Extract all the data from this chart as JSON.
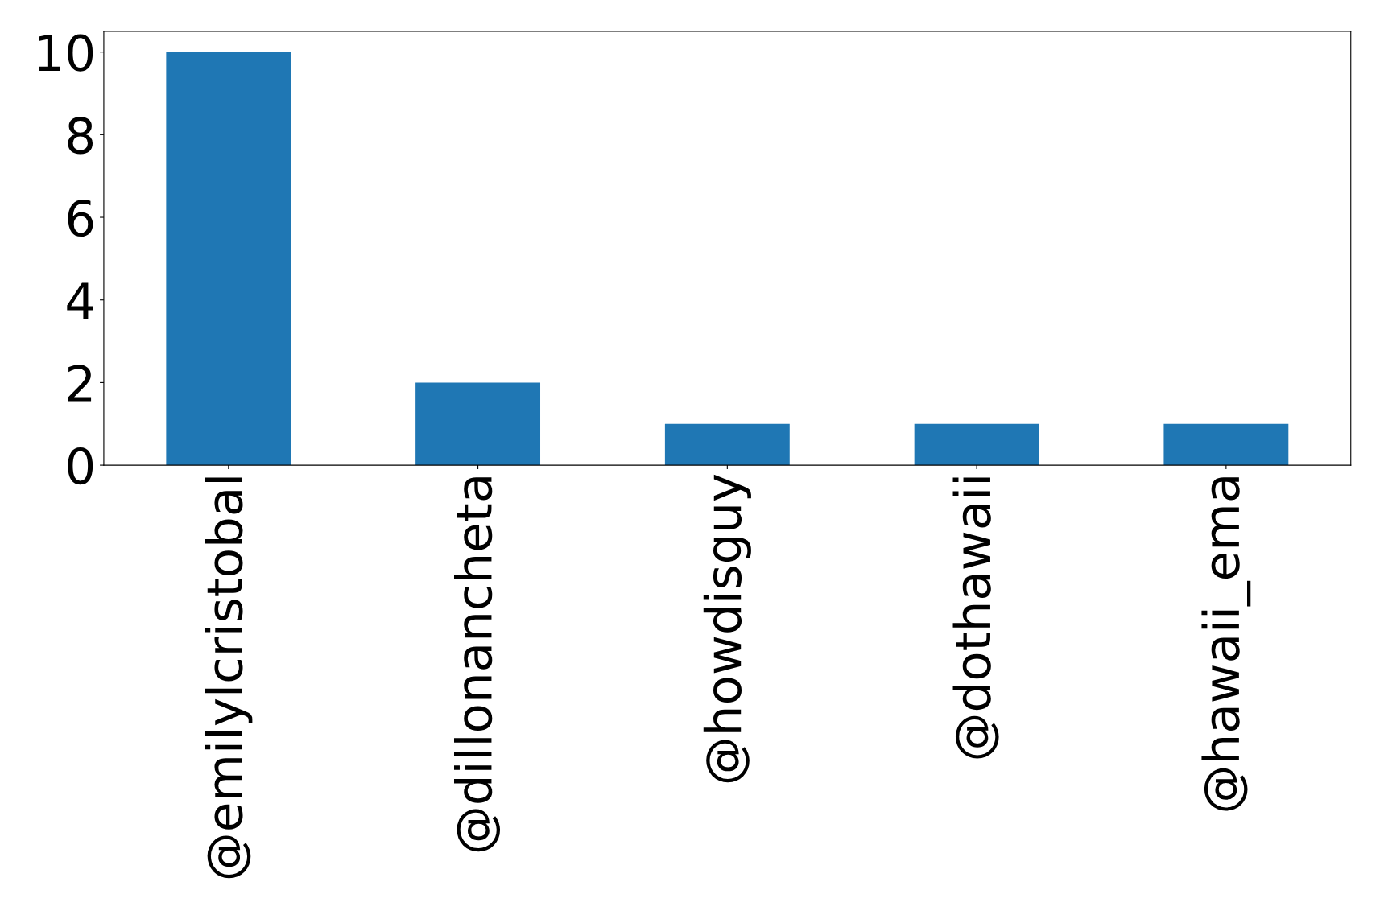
{
  "chart_data": {
    "type": "bar",
    "categories": [
      "@emilylcristobal",
      "@dillonancheta",
      "@howdisguy",
      "@dothawaii",
      "@hawaii_ema"
    ],
    "values": [
      10,
      2,
      1,
      1,
      1
    ],
    "color": "#1f77b4",
    "ylim": [
      0,
      10.5
    ],
    "yticks": [
      0,
      2,
      4,
      6,
      8,
      10
    ],
    "grid": false,
    "legend": false
  }
}
